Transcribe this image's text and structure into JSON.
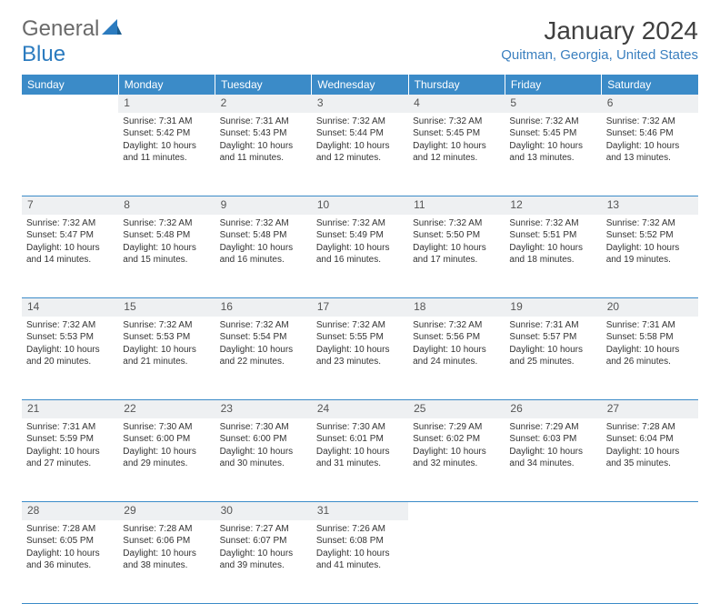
{
  "branding": {
    "logo_word1": "General",
    "logo_word2": "Blue"
  },
  "title": {
    "month_year": "January 2024",
    "location": "Quitman, Georgia, United States"
  },
  "styling": {
    "header_bg": "#3b8bc8",
    "header_fg": "#ffffff",
    "daynum_bg": "#eef0f2",
    "daynum_fg": "#555555",
    "border_color": "#3b8bc8",
    "body_text": "#333333",
    "location_color": "#3a7fbf",
    "logo_gray": "#6a6a6a",
    "logo_blue": "#2b7bbf",
    "cell_fontsize": 10,
    "header_fontsize": 12,
    "title_fontsize": 28
  },
  "weekdays": [
    "Sunday",
    "Monday",
    "Tuesday",
    "Wednesday",
    "Thursday",
    "Friday",
    "Saturday"
  ],
  "weeks": [
    {
      "nums": [
        "",
        "1",
        "2",
        "3",
        "4",
        "5",
        "6"
      ],
      "cells": [
        {
          "blank": true
        },
        {
          "sunrise": "7:31 AM",
          "sunset": "5:42 PM",
          "daylight": "10 hours and 11 minutes."
        },
        {
          "sunrise": "7:31 AM",
          "sunset": "5:43 PM",
          "daylight": "10 hours and 11 minutes."
        },
        {
          "sunrise": "7:32 AM",
          "sunset": "5:44 PM",
          "daylight": "10 hours and 12 minutes."
        },
        {
          "sunrise": "7:32 AM",
          "sunset": "5:45 PM",
          "daylight": "10 hours and 12 minutes."
        },
        {
          "sunrise": "7:32 AM",
          "sunset": "5:45 PM",
          "daylight": "10 hours and 13 minutes."
        },
        {
          "sunrise": "7:32 AM",
          "sunset": "5:46 PM",
          "daylight": "10 hours and 13 minutes."
        }
      ]
    },
    {
      "nums": [
        "7",
        "8",
        "9",
        "10",
        "11",
        "12",
        "13"
      ],
      "cells": [
        {
          "sunrise": "7:32 AM",
          "sunset": "5:47 PM",
          "daylight": "10 hours and 14 minutes."
        },
        {
          "sunrise": "7:32 AM",
          "sunset": "5:48 PM",
          "daylight": "10 hours and 15 minutes."
        },
        {
          "sunrise": "7:32 AM",
          "sunset": "5:48 PM",
          "daylight": "10 hours and 16 minutes."
        },
        {
          "sunrise": "7:32 AM",
          "sunset": "5:49 PM",
          "daylight": "10 hours and 16 minutes."
        },
        {
          "sunrise": "7:32 AM",
          "sunset": "5:50 PM",
          "daylight": "10 hours and 17 minutes."
        },
        {
          "sunrise": "7:32 AM",
          "sunset": "5:51 PM",
          "daylight": "10 hours and 18 minutes."
        },
        {
          "sunrise": "7:32 AM",
          "sunset": "5:52 PM",
          "daylight": "10 hours and 19 minutes."
        }
      ]
    },
    {
      "nums": [
        "14",
        "15",
        "16",
        "17",
        "18",
        "19",
        "20"
      ],
      "cells": [
        {
          "sunrise": "7:32 AM",
          "sunset": "5:53 PM",
          "daylight": "10 hours and 20 minutes."
        },
        {
          "sunrise": "7:32 AM",
          "sunset": "5:53 PM",
          "daylight": "10 hours and 21 minutes."
        },
        {
          "sunrise": "7:32 AM",
          "sunset": "5:54 PM",
          "daylight": "10 hours and 22 minutes."
        },
        {
          "sunrise": "7:32 AM",
          "sunset": "5:55 PM",
          "daylight": "10 hours and 23 minutes."
        },
        {
          "sunrise": "7:32 AM",
          "sunset": "5:56 PM",
          "daylight": "10 hours and 24 minutes."
        },
        {
          "sunrise": "7:31 AM",
          "sunset": "5:57 PM",
          "daylight": "10 hours and 25 minutes."
        },
        {
          "sunrise": "7:31 AM",
          "sunset": "5:58 PM",
          "daylight": "10 hours and 26 minutes."
        }
      ]
    },
    {
      "nums": [
        "21",
        "22",
        "23",
        "24",
        "25",
        "26",
        "27"
      ],
      "cells": [
        {
          "sunrise": "7:31 AM",
          "sunset": "5:59 PM",
          "daylight": "10 hours and 27 minutes."
        },
        {
          "sunrise": "7:30 AM",
          "sunset": "6:00 PM",
          "daylight": "10 hours and 29 minutes."
        },
        {
          "sunrise": "7:30 AM",
          "sunset": "6:00 PM",
          "daylight": "10 hours and 30 minutes."
        },
        {
          "sunrise": "7:30 AM",
          "sunset": "6:01 PM",
          "daylight": "10 hours and 31 minutes."
        },
        {
          "sunrise": "7:29 AM",
          "sunset": "6:02 PM",
          "daylight": "10 hours and 32 minutes."
        },
        {
          "sunrise": "7:29 AM",
          "sunset": "6:03 PM",
          "daylight": "10 hours and 34 minutes."
        },
        {
          "sunrise": "7:28 AM",
          "sunset": "6:04 PM",
          "daylight": "10 hours and 35 minutes."
        }
      ]
    },
    {
      "nums": [
        "28",
        "29",
        "30",
        "31",
        "",
        "",
        ""
      ],
      "cells": [
        {
          "sunrise": "7:28 AM",
          "sunset": "6:05 PM",
          "daylight": "10 hours and 36 minutes."
        },
        {
          "sunrise": "7:28 AM",
          "sunset": "6:06 PM",
          "daylight": "10 hours and 38 minutes."
        },
        {
          "sunrise": "7:27 AM",
          "sunset": "6:07 PM",
          "daylight": "10 hours and 39 minutes."
        },
        {
          "sunrise": "7:26 AM",
          "sunset": "6:08 PM",
          "daylight": "10 hours and 41 minutes."
        },
        {
          "blank": true
        },
        {
          "blank": true
        },
        {
          "blank": true
        }
      ]
    }
  ],
  "labels": {
    "sunrise": "Sunrise: ",
    "sunset": "Sunset: ",
    "daylight": "Daylight: "
  }
}
